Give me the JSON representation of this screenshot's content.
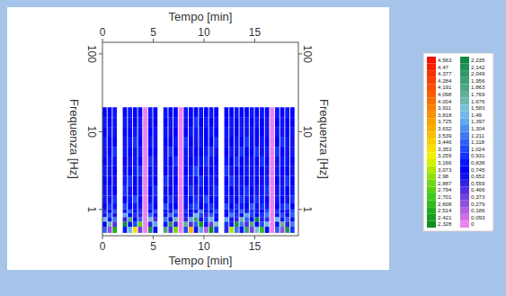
{
  "chart_data": {
    "type": "heatmap",
    "x_label": "Tempo [min]",
    "y_label": "Frequenza [Hz]",
    "log": "y",
    "xlim": [
      0,
      19.3
    ],
    "xticks": [
      0,
      5,
      10,
      15
    ],
    "ylim": [
      0.46,
      141
    ],
    "yticks": [
      1,
      10,
      100
    ],
    "x_edges": [
      0,
      0.5,
      1,
      1.5,
      2,
      2.5,
      3,
      3.5,
      4,
      4.5,
      5,
      5.5,
      6,
      6.5,
      7,
      7.5,
      8,
      8.5,
      9,
      9.5,
      10,
      10.5,
      11,
      11.5,
      12,
      12.5,
      13,
      13.5,
      14,
      14.5,
      15,
      15.5,
      16,
      16.5,
      17,
      17.5,
      18,
      18.5,
      19
    ],
    "y_edges": [
      0.5,
      0.6,
      0.7,
      0.8,
      0.9,
      1.0,
      1.2,
      1.5,
      2,
      2.7,
      3.6,
      4.8,
      6.4,
      8.6,
      11.5,
      15.4,
      20.6
    ],
    "cells": [
      [
        1.2,
        0.3,
        2.6,
        null,
        0.9,
        1.5,
        3.4,
        0.4,
        0,
        2.2,
        0.8,
        null,
        1.9,
        0.5,
        2.9,
        0,
        1.1,
        3.7,
        0.7,
        1.4,
        0.2,
        2.4,
        1.0,
        null,
        0.6,
        3.1,
        1.3,
        0.9,
        2.0,
        0.4,
        1.6,
        2.7,
        0.8,
        0,
        1.2,
        0.3,
        2.2,
        1.0
      ],
      [
        0.8,
        1.7,
        0.5,
        null,
        2.3,
        0.7,
        1.1,
        2.8,
        0,
        0.6,
        1.4,
        null,
        0.9,
        2.1,
        0.6,
        0,
        1.8,
        0.5,
        1.2,
        2.5,
        0.9,
        0.4,
        1.6,
        null,
        1.0,
        0.7,
        2.2,
        1.3,
        0.5,
        1.9,
        0.8,
        1.1,
        1.5,
        0,
        0.7,
        1.8,
        0.6,
        1.3
      ],
      [
        1.5,
        0.9,
        1.3,
        null,
        0.6,
        1.9,
        0.8,
        1.2,
        0,
        1.6,
        0.5,
        null,
        1.3,
        0.8,
        1.7,
        0,
        0.6,
        1.4,
        2.0,
        0.7,
        1.1,
        1.5,
        0.8,
        null,
        1.4,
        0.9,
        0.6,
        1.7,
        1.2,
        0.8,
        2.3,
        0.6,
        1.0,
        0,
        1.5,
        0.9,
        1.2,
        0.7
      ],
      [
        0.9,
        1.2,
        0.7,
        null,
        1.4,
        0.8,
        1.0,
        0.6,
        0,
        1.2,
        0.9,
        null,
        0.7,
        1.3,
        1.0,
        0,
        0.9,
        0.7,
        1.5,
        1.1,
        0.6,
        1.2,
        0.9,
        null,
        0.8,
        1.3,
        1.0,
        0.7,
        1.4,
        1.1,
        0.8,
        1.0,
        1.3,
        0,
        0.9,
        1.1,
        0.8,
        1.2
      ],
      [
        1.0,
        0.8,
        1.1,
        null,
        0.9,
        1.2,
        0.7,
        1.0,
        0,
        0.8,
        1.1,
        null,
        0.9,
        0.7,
        1.2,
        0,
        1.0,
        0.8,
        0.9,
        1.3,
        0.7,
        0.9,
        1.1,
        null,
        0.8,
        1.0,
        0.9,
        1.2,
        0.7,
        1.0,
        0.9,
        0.8,
        1.1,
        0,
        1.0,
        0.7,
        0.9,
        1.1
      ],
      [
        0.8,
        1.0,
        0.9,
        null,
        1.1,
        0.8,
        0.9,
        0.7,
        0,
        1.0,
        0.8,
        null,
        1.1,
        0.9,
        0.8,
        0,
        0.7,
        1.0,
        1.1,
        0.8,
        0.9,
        1.0,
        0.7,
        null,
        1.1,
        0.8,
        1.0,
        0.9,
        0.8,
        1.2,
        0.7,
        1.0,
        0.9,
        0,
        0.8,
        1.0,
        1.1,
        0.8
      ],
      [
        0.9,
        0.7,
        1.0,
        null,
        0.8,
        0.9,
        1.1,
        0.8,
        0,
        0.7,
        0.9,
        null,
        0.8,
        1.0,
        0.7,
        0,
        0.9,
        0.8,
        1.0,
        0.7,
        1.1,
        0.8,
        0.9,
        null,
        0.7,
        0.9,
        0.8,
        1.0,
        0.9,
        0.7,
        1.0,
        0.9,
        0.8,
        0,
        0.9,
        0.8,
        0.7,
        1.0
      ],
      [
        0.7,
        0.9,
        0.8,
        null,
        1.0,
        0.7,
        0.8,
        0.9,
        0,
        0.8,
        1.0,
        null,
        0.7,
        0.8,
        0.9,
        0,
        0.8,
        1.0,
        0.7,
        0.9,
        0.8,
        0.7,
        1.0,
        null,
        0.9,
        0.8,
        0.7,
        0.9,
        1.0,
        0.8,
        0.7,
        0.9,
        1.0,
        0,
        0.7,
        0.9,
        0.8,
        0.9
      ],
      [
        0.8,
        0.8,
        0.7,
        null,
        0.9,
        1.0,
        0.8,
        0.7,
        0,
        0.9,
        0.8,
        null,
        1.0,
        0.7,
        0.8,
        0,
        0.9,
        0.7,
        0.8,
        1.0,
        0.8,
        0.9,
        0.7,
        null,
        0.8,
        1.0,
        0.9,
        0.7,
        0.8,
        0.9,
        0.8,
        0.7,
        0.9,
        0,
        0.8,
        0.7,
        1.0,
        0.8
      ],
      [
        0.9,
        0.7,
        0.8,
        null,
        0.7,
        0.8,
        0.9,
        1.0,
        0,
        0.7,
        0.9,
        null,
        0.8,
        0.9,
        0.7,
        0,
        0.8,
        0.9,
        1.1,
        0.8,
        0.7,
        0.8,
        0.9,
        null,
        1.0,
        0.7,
        0.8,
        0.8,
        0.9,
        0.7,
        0.9,
        0.8,
        0.7,
        0,
        0.9,
        0.8,
        0.8,
        0.7
      ],
      [
        0.8,
        0.9,
        0.9,
        null,
        0.8,
        0.7,
        0.9,
        0.8,
        0,
        1.0,
        0.7,
        null,
        0.9,
        0.8,
        1.0,
        0,
        0.7,
        0.8,
        0.9,
        0.9,
        1.0,
        0.7,
        0.8,
        null,
        0.9,
        0.8,
        1.0,
        0.8,
        0.7,
        0.9,
        0.8,
        1.0,
        0.8,
        0,
        0.7,
        0.9,
        0.9,
        0.8
      ],
      [
        0.7,
        0.8,
        1.0,
        null,
        0.9,
        0.8,
        0.7,
        0.9,
        0,
        0.8,
        0.8,
        null,
        0.7,
        1.0,
        0.8,
        0,
        0.9,
        0.7,
        0.8,
        0.8,
        0.9,
        1.0,
        0.7,
        null,
        0.8,
        0.9,
        0.7,
        1.0,
        0.8,
        0.8,
        1.0,
        0.7,
        0.9,
        0,
        1.0,
        0.8,
        0.7,
        0.9
      ],
      [
        0.9,
        0.8,
        0.8,
        null,
        0.7,
        0.9,
        1.0,
        0.8,
        0,
        0.9,
        0.7,
        null,
        0.8,
        0.8,
        0.9,
        0,
        1.0,
        0.8,
        0.7,
        0.9,
        0.8,
        0.8,
        1.0,
        null,
        0.7,
        0.8,
        0.9,
        0.8,
        1.0,
        0.7,
        0.8,
        0.9,
        0.8,
        0,
        0.8,
        1.0,
        0.9,
        0.7
      ],
      [
        0.8,
        0.9,
        0.7,
        null,
        0.8,
        0.8,
        0.9,
        0.7,
        0,
        0.8,
        0.9,
        null,
        0.9,
        0.7,
        0.8,
        0,
        0.8,
        0.9,
        0.9,
        0.7,
        0.8,
        0.9,
        0.8,
        null,
        0.9,
        0.7,
        0.8,
        0.9,
        0.7,
        0.9,
        0.8,
        0.8,
        0.9,
        0,
        0.9,
        0.7,
        0.8,
        0.9
      ],
      [
        0.9,
        0.8,
        0.9,
        null,
        0.9,
        0.7,
        0.8,
        0.9,
        0,
        0.7,
        0.8,
        null,
        0.8,
        0.9,
        0.9,
        0,
        0.7,
        0.8,
        1.0,
        0.8,
        0.9,
        0.8,
        0.9,
        null,
        0.8,
        0.9,
        0.8,
        0.7,
        0.9,
        0.8,
        0.9,
        0.8,
        0.7,
        0,
        0.8,
        0.9,
        0.8,
        0.8
      ],
      [
        0.8,
        0.8,
        0.9,
        null,
        0.8,
        0.9,
        0.8,
        0.8,
        0,
        0.9,
        0.8,
        null,
        0.9,
        0.8,
        0.8,
        0,
        0.9,
        0.8,
        0.8,
        0.9,
        0.8,
        0.9,
        0.8,
        null,
        0.8,
        0.8,
        0.9,
        0.8,
        0.8,
        0.9,
        0.8,
        0.9,
        0.8,
        0,
        0.9,
        0.8,
        0.9,
        0.8
      ]
    ],
    "colorbar": {
      "range": [
        0,
        4.563
      ],
      "ticks": [
        0,
        {
          "value": 0.093,
          "label": "0,093"
        },
        {
          "value": 0.186,
          "label": "0,186"
        },
        {
          "value": 0.279,
          "label": "0,279"
        },
        {
          "value": 0.373,
          "label": "0,373"
        },
        {
          "value": 0.466,
          "label": "0,466"
        },
        {
          "value": 0.559,
          "label": "0,559"
        },
        {
          "value": 0.652,
          "label": "0,652"
        },
        {
          "value": 0.745,
          "label": "0,745"
        },
        {
          "value": 0.838,
          "label": "0,838"
        },
        {
          "value": 0.931,
          "label": "0,931"
        },
        {
          "value": 1.024,
          "label": "1,024"
        },
        {
          "value": 1.118,
          "label": "1,118"
        },
        {
          "value": 1.211,
          "label": "1,211"
        },
        {
          "value": 1.304,
          "label": "1,304"
        },
        {
          "value": 1.397,
          "label": "1,397"
        },
        {
          "value": 1.49,
          "label": "1,49"
        },
        {
          "value": 1.583,
          "label": "1,583"
        },
        {
          "value": 1.676,
          "label": "1,676"
        },
        {
          "value": 1.769,
          "label": "1,769"
        },
        {
          "value": 1.863,
          "label": "1,863"
        },
        {
          "value": 1.956,
          "label": "1,956"
        },
        {
          "value": 2.049,
          "label": "2,049"
        },
        {
          "value": 2.142,
          "label": "2,142"
        },
        {
          "value": 2.235,
          "label": "2,235"
        },
        {
          "value": 2.328,
          "label": "2,328"
        },
        {
          "value": 2.421,
          "label": "2,421"
        },
        {
          "value": 2.514,
          "label": "2,514"
        },
        {
          "value": 2.608,
          "label": "2,608"
        },
        {
          "value": 2.701,
          "label": "2,701"
        },
        {
          "value": 2.794,
          "label": "2,794"
        },
        {
          "value": 2.887,
          "label": "2,887"
        },
        {
          "value": 2.98,
          "label": "2,98"
        },
        {
          "value": 3.073,
          "label": "3,073"
        },
        {
          "value": 3.166,
          "label": "3,166"
        },
        {
          "value": 3.259,
          "label": "3,259"
        },
        {
          "value": 3.353,
          "label": "3,353"
        },
        {
          "value": 3.446,
          "label": "3,446"
        },
        {
          "value": 3.539,
          "label": "3,539"
        },
        {
          "value": 3.632,
          "label": "3,632"
        },
        {
          "value": 3.725,
          "label": "3,725"
        },
        {
          "value": 3.818,
          "label": "3,818"
        },
        {
          "value": 3.911,
          "label": "3,911"
        },
        {
          "value": 4.004,
          "label": "4,004"
        },
        {
          "value": 4.098,
          "label": "4,098"
        },
        {
          "value": 4.191,
          "label": "4,191"
        },
        {
          "value": 4.284,
          "label": "4,284"
        },
        {
          "value": 4.377,
          "label": "4,377"
        },
        {
          "value": 4.47,
          "label": "4,47"
        },
        {
          "value": 4.563,
          "label": "4,563"
        }
      ],
      "colors": [
        "#ee82ee",
        "#d070e8",
        "#b060e0",
        "#9050e0",
        "#7040e0",
        "#5030e0",
        "#3020e8",
        "#1010f0",
        "#0000ff",
        "#0a14ff",
        "#1430ff",
        "#2048ff",
        "#3060f8",
        "#4078f0",
        "#5090f0",
        "#60a8f0",
        "#70b8e8",
        "#78c0d8",
        "#70b8b0",
        "#60b098",
        "#50a888",
        "#40a078",
        "#309868",
        "#209058",
        "#108848",
        "#108c20",
        "#189c20",
        "#20ac20",
        "#30bc20",
        "#40c820",
        "#58d018",
        "#70d818",
        "#90e010",
        "#b0e808",
        "#d0f000",
        "#f0f000",
        "#f8e000",
        "#f8d000",
        "#f8c000",
        "#f8b000",
        "#f8a000",
        "#f89000",
        "#f88000",
        "#f87000",
        "#f86000",
        "#f85000",
        "#f84000",
        "#f83000",
        "#f82000",
        "#f81000"
      ]
    }
  }
}
